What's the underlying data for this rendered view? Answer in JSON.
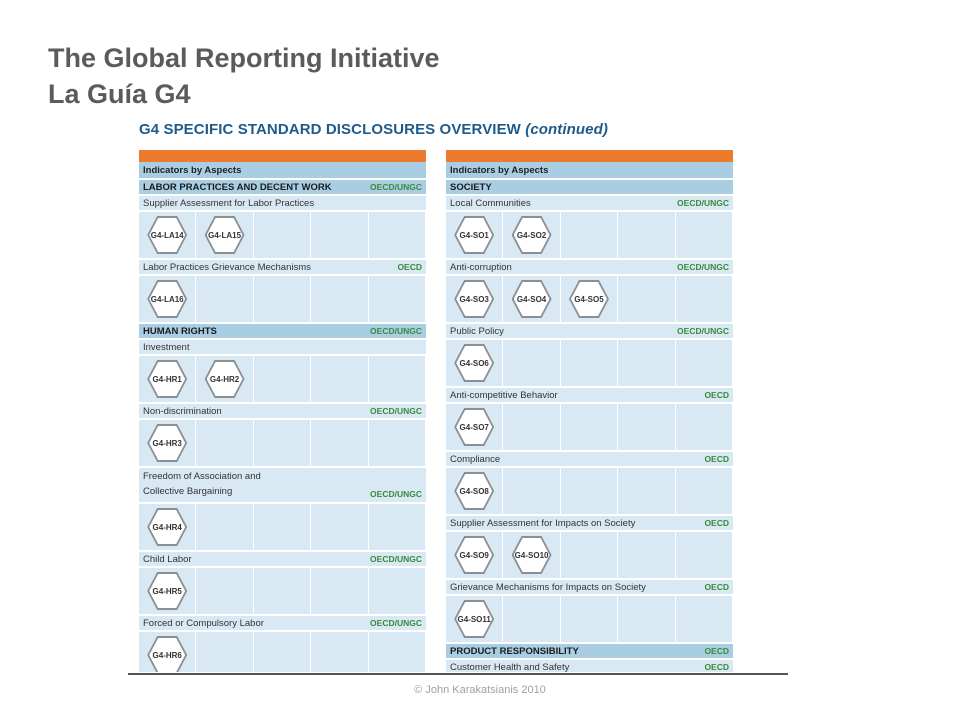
{
  "slide": {
    "title_line1": "The Global Reporting Initiative",
    "title_line2": "La Guía G4"
  },
  "document": {
    "heading": "G4 SPECIFIC STANDARD DISCLOSURES OVERVIEW",
    "heading_suffix": "(continued)"
  },
  "left_panel": {
    "header": "Indicators by Aspects",
    "rows": [
      {
        "kind": "section",
        "label": "LABOR PRACTICES AND DECENT WORK",
        "tag": "OECD/UNGC"
      },
      {
        "kind": "aspect",
        "label": "Supplier Assessment for Labor Practices",
        "tag": ""
      },
      {
        "kind": "indicators",
        "items": [
          "G4-LA14",
          "G4-LA15"
        ]
      },
      {
        "kind": "aspect",
        "label": "Labor Practices Grievance Mechanisms",
        "tag": "OECD"
      },
      {
        "kind": "indicators",
        "items": [
          "G4-LA16"
        ]
      },
      {
        "kind": "section",
        "label": "HUMAN RIGHTS",
        "tag": "OECD/UNGC"
      },
      {
        "kind": "aspect",
        "label": "Investment",
        "tag": ""
      },
      {
        "kind": "indicators",
        "items": [
          "G4-HR1",
          "G4-HR2"
        ]
      },
      {
        "kind": "aspect",
        "label": "Non-discrimination",
        "tag": "OECD/UNGC"
      },
      {
        "kind": "indicators",
        "items": [
          "G4-HR3"
        ]
      },
      {
        "kind": "aspect",
        "label": "Freedom of Association and",
        "label2": "Collective Bargaining",
        "tag": "OECD/UNGC",
        "tall": true
      },
      {
        "kind": "indicators",
        "items": [
          "G4-HR4"
        ]
      },
      {
        "kind": "aspect",
        "label": "Child Labor",
        "tag": "OECD/UNGC"
      },
      {
        "kind": "indicators",
        "items": [
          "G4-HR5"
        ]
      },
      {
        "kind": "aspect",
        "label": "Forced or Compulsory Labor",
        "tag": "OECD/UNGC"
      },
      {
        "kind": "indicators",
        "items": [
          "G4-HR6"
        ]
      }
    ]
  },
  "right_panel": {
    "header": "Indicators by Aspects",
    "rows": [
      {
        "kind": "section",
        "label": "SOCIETY",
        "tag": ""
      },
      {
        "kind": "aspect",
        "label": "Local Communities",
        "tag": "OECD/UNGC"
      },
      {
        "kind": "indicators",
        "items": [
          "G4-SO1",
          "G4-SO2"
        ]
      },
      {
        "kind": "aspect",
        "label": "Anti-corruption",
        "tag": "OECD/UNGC"
      },
      {
        "kind": "indicators",
        "items": [
          "G4-SO3",
          "G4-SO4",
          "G4-SO5"
        ]
      },
      {
        "kind": "aspect",
        "label": "Public Policy",
        "tag": "OECD/UNGC"
      },
      {
        "kind": "indicators",
        "items": [
          "G4-SO6"
        ]
      },
      {
        "kind": "aspect",
        "label": "Anti-competitive Behavior",
        "tag": "OECD"
      },
      {
        "kind": "indicators",
        "items": [
          "G4-SO7"
        ]
      },
      {
        "kind": "aspect",
        "label": "Compliance",
        "tag": "OECD"
      },
      {
        "kind": "indicators",
        "items": [
          "G4-SO8"
        ]
      },
      {
        "kind": "aspect",
        "label": "Supplier Assessment for Impacts on Society",
        "tag": "OECD"
      },
      {
        "kind": "indicators",
        "items": [
          "G4-SO9",
          "G4-SO10"
        ]
      },
      {
        "kind": "aspect",
        "label": "Grievance Mechanisms for Impacts on Society",
        "tag": "OECD"
      },
      {
        "kind": "indicators",
        "items": [
          "G4-SO11"
        ]
      },
      {
        "kind": "section",
        "label": "PRODUCT RESPONSIBILITY",
        "tag": "OECD"
      },
      {
        "kind": "aspect",
        "label": "Customer Health and Safety",
        "tag": "OECD"
      }
    ]
  },
  "footer": {
    "copyright": "© John Karakatsianis 2010"
  },
  "colors": {
    "orange": "#ee7a2d",
    "header_blue": "#a9cde3",
    "light_blue": "#d8e9f4",
    "tag_green": "#3a8a3a",
    "heading_blue": "#1f5b8a"
  }
}
